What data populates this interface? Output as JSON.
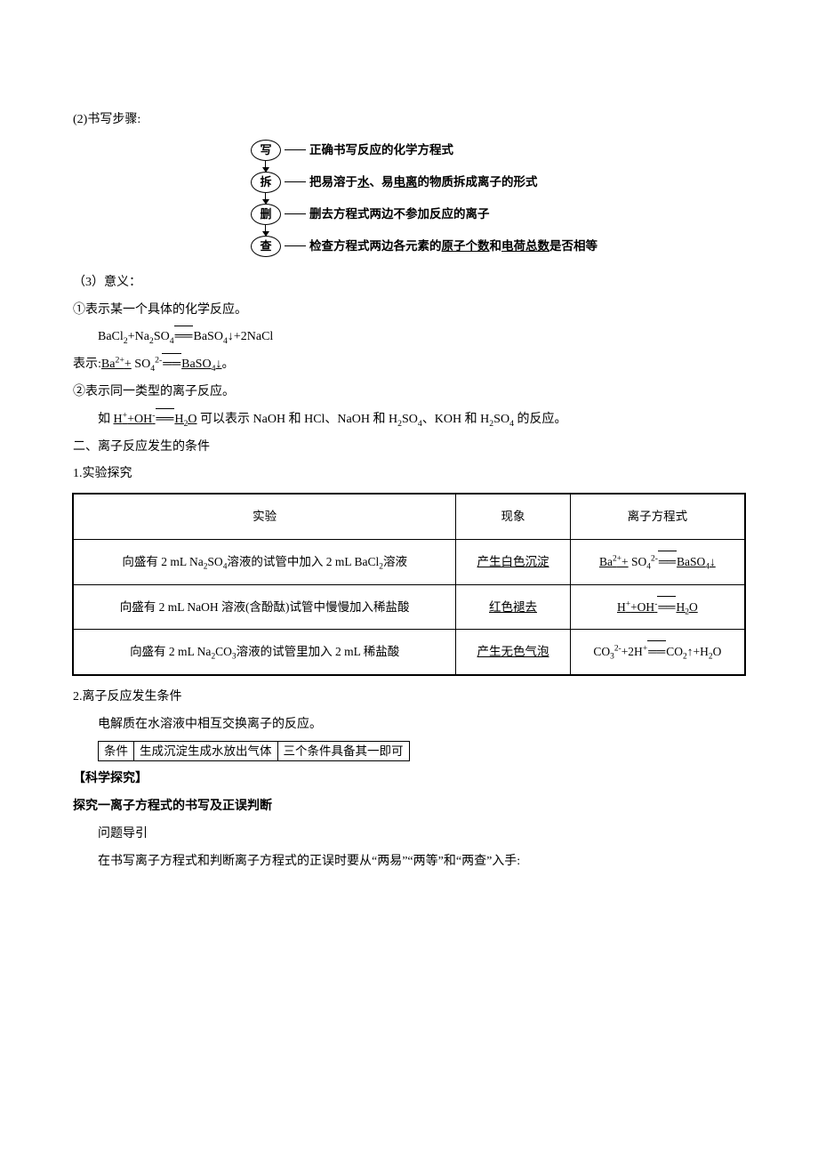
{
  "background_color": "#ffffff",
  "text_color": "#000000",
  "font_family": "SimSun",
  "base_fontsize": 14,
  "line1": "(2)书写步骤:",
  "flowchart": {
    "node_border_color": "#000000",
    "arrow_color": "#000000",
    "steps": [
      {
        "node": "写",
        "label_parts": [
          "正确书写反应的化学方程式"
        ]
      },
      {
        "node": "拆",
        "label_parts": [
          "把易溶于",
          {
            "u": "水"
          },
          "、易",
          {
            "u": "电离"
          },
          "的物质拆成离子的形式"
        ]
      },
      {
        "node": "删",
        "label_parts": [
          "删去方程式两边不参加反应的离子"
        ]
      },
      {
        "node": "查",
        "label_parts": [
          "检查方程式两边各元素的",
          {
            "u": "原子个数"
          },
          "和",
          {
            "u": "电荷总数"
          },
          "是否相等"
        ]
      }
    ]
  },
  "line_meaning": "（3）意义：",
  "m1": "①表示某一个具体的化学反应。",
  "m1_eq_plain": "BaCl",
  "m1_eq_full": "BaCl₂+Na₂SO₄══BaSO₄↓+2NaCl",
  "m1_repr_prefix": "表示:",
  "m1_repr_u1": "Ba²⁺+",
  "m1_repr_mid": " SO₄²⁻══",
  "m1_repr_u2": "BaSO₄↓",
  "m1_repr_suffix": "。",
  "m2": "②表示同一类型的离子反应。",
  "m2_line_prefix": "如 ",
  "m2_u": "H⁺+OH⁻══H₂O",
  "m2_line_suffix": " 可以表示 NaOH 和 HCl、NaOH 和 H₂SO₄、KOH 和 H₂SO₄ 的反应。",
  "sec2_title": "二、离子反应发生的条件",
  "sec2_1": "1.实验探究",
  "table": {
    "border_color": "#000000",
    "col_widths_pct": [
      57,
      17,
      26
    ],
    "headers": [
      "实验",
      "现象",
      "离子方程式"
    ],
    "rows": [
      {
        "experiment": "向盛有 2 mL Na₂SO₄溶液的试管中加入 2 mL BaCl₂溶液",
        "phenomenon": "产生白色沉淀",
        "equation_parts": [
          {
            "u": "Ba²⁺+"
          },
          " SO₄²⁻══",
          {
            "u": "BaSO₄↓"
          }
        ]
      },
      {
        "experiment": "向盛有 2 mL NaOH 溶液(含酚酞)试管中慢慢加入稀盐酸",
        "phenomenon": "红色褪去",
        "equation_parts": [
          {
            "u": "H⁺+OH⁻"
          },
          "══",
          {
            "u": "H₂O"
          }
        ]
      },
      {
        "experiment": "向盛有 2 mL Na₂CO₃溶液的试管里加入 2 mL 稀盐酸",
        "phenomenon": "产生无色气泡",
        "equation_parts": [
          "CO₃²⁻+2H⁺══CO₂↑+H₂O"
        ]
      }
    ],
    "phenomenon_underline": true
  },
  "sec2_2": "2.离子反应发生条件",
  "sec2_2_line": "电解质在水溶液中相互交换离子的反应。",
  "boxline": {
    "cells": [
      "条件",
      "生成沉淀生成水放出气体",
      "三个条件具备其一即可"
    ]
  },
  "sci_title": "【科学探究】",
  "explore1_title": "探究一离子方程式的书写及正误判断",
  "explore1_sub": "问题导引",
  "explore1_line": "在书写离子方程式和判断离子方程式的正误时要从“两易”“两等”和“两查”入手:"
}
